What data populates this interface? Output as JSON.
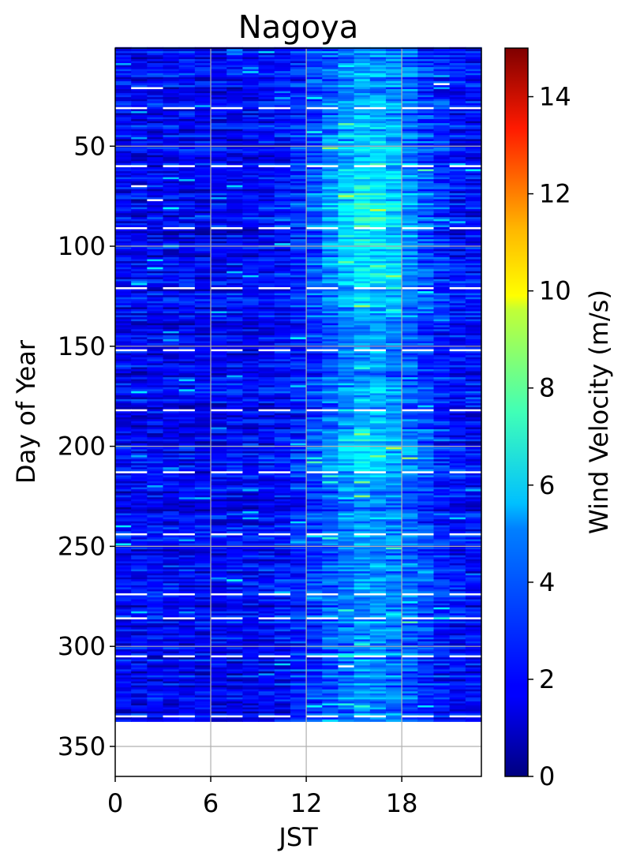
{
  "chart_data": {
    "type": "heatmap",
    "title": "Nagoya",
    "xlabel": "JST",
    "ylabel": "Day of Year",
    "x_range": [
      0,
      23
    ],
    "y_range": [
      365,
      1
    ],
    "y_inverted": true,
    "data_y_extent": [
      1,
      337
    ],
    "x_ticks": [
      0,
      6,
      12,
      18
    ],
    "y_ticks": [
      50,
      100,
      150,
      200,
      250,
      300,
      350
    ],
    "grid": true,
    "colormap": "jet",
    "colorbar": {
      "label": "Wind Velocity (m/s)",
      "range": [
        0,
        15
      ],
      "ticks": [
        0,
        2,
        4,
        6,
        8,
        10,
        12,
        14
      ]
    },
    "missing_color": "#ffffff",
    "summary_pattern": {
      "description_note": "Approximate wind velocity field, estimated from colors",
      "night_hours_typical_ms": 1.8,
      "afternoon_peak_hour": 16,
      "afternoon_peak_typical_ms": 5.5,
      "spring_peak_days": [
        40,
        130
      ],
      "summer_peak_days": [
        185,
        215
      ]
    },
    "missing_rows": [
      31,
      60,
      91,
      121,
      152,
      182,
      213,
      244,
      274,
      305,
      335,
      286
    ],
    "missing_cells": [
      {
        "day": 21,
        "hours": [
          1,
          2
        ]
      },
      {
        "day": 19,
        "hours": [
          20
        ]
      },
      {
        "day": 70,
        "hours": [
          1
        ]
      },
      {
        "day": 77,
        "hours": [
          2
        ]
      },
      {
        "day": 310,
        "hours": [
          14
        ]
      }
    ]
  }
}
